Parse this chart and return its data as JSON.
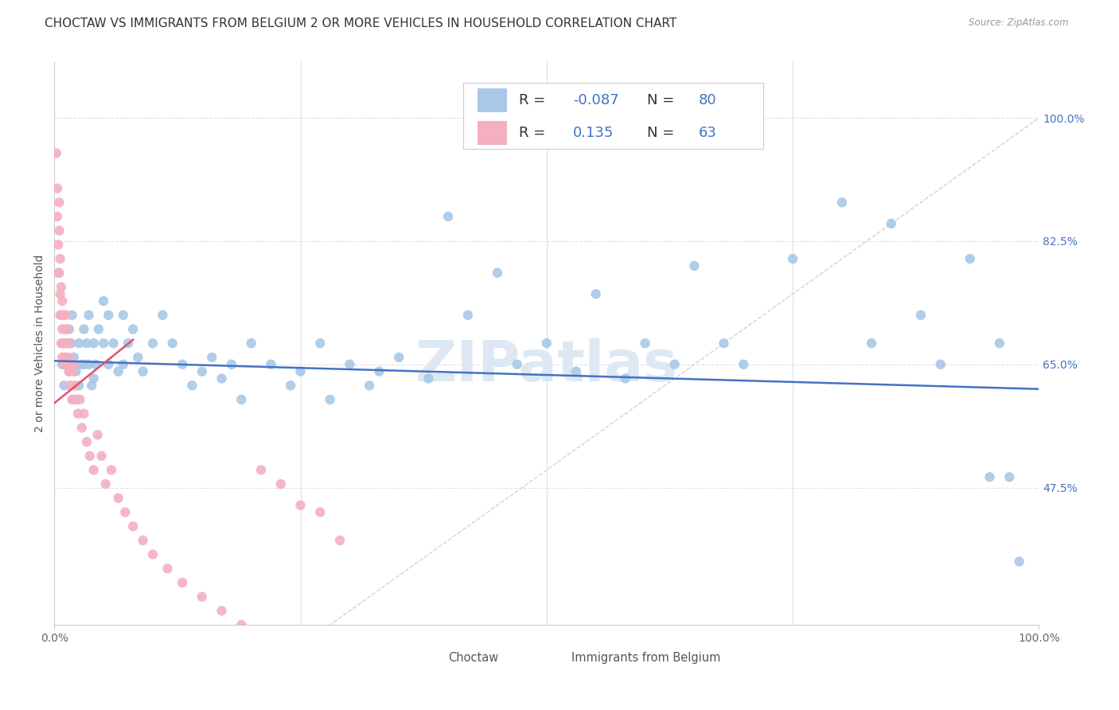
{
  "title": "CHOCTAW VS IMMIGRANTS FROM BELGIUM 2 OR MORE VEHICLES IN HOUSEHOLD CORRELATION CHART",
  "source": "Source: ZipAtlas.com",
  "ylabel": "2 or more Vehicles in Household",
  "choctaw_color": "#a8c8e8",
  "belgium_color": "#f4b0c0",
  "trend_choctaw_color": "#4472c4",
  "trend_belgium_color": "#e05070",
  "diagonal_color": "#c8c8c8",
  "watermark_color": "#dde8f4",
  "legend_r_choctaw": "-0.087",
  "legend_n_choctaw": "80",
  "legend_r_belgium": "0.135",
  "legend_n_belgium": "63",
  "grid_color": "#e0e0e8",
  "grid_style": "--",
  "bg_color": "#ffffff",
  "title_fontsize": 11,
  "label_fontsize": 10,
  "tick_fontsize": 10,
  "legend_fontsize": 13,
  "right_tick_color": "#4472c4",
  "ytick_positions": [
    0.475,
    0.65,
    0.825,
    1.0
  ],
  "ytick_labels": [
    "47.5%",
    "65.0%",
    "82.5%",
    "100.0%"
  ],
  "xtick_positions": [
    0.0,
    1.0
  ],
  "xtick_labels": [
    "0.0%",
    "100.0%"
  ],
  "ylim": [
    0.28,
    1.08
  ],
  "xlim": [
    0.0,
    1.0
  ],
  "choctaw_x": [
    0.008,
    0.01,
    0.012,
    0.015,
    0.015,
    0.017,
    0.018,
    0.02,
    0.02,
    0.022,
    0.025,
    0.025,
    0.028,
    0.03,
    0.03,
    0.033,
    0.035,
    0.035,
    0.038,
    0.04,
    0.04,
    0.042,
    0.045,
    0.05,
    0.05,
    0.055,
    0.055,
    0.06,
    0.065,
    0.07,
    0.07,
    0.075,
    0.08,
    0.085,
    0.09,
    0.1,
    0.11,
    0.12,
    0.13,
    0.14,
    0.15,
    0.16,
    0.17,
    0.18,
    0.19,
    0.2,
    0.22,
    0.24,
    0.25,
    0.27,
    0.28,
    0.3,
    0.32,
    0.33,
    0.35,
    0.38,
    0.4,
    0.42,
    0.45,
    0.47,
    0.5,
    0.53,
    0.55,
    0.58,
    0.6,
    0.63,
    0.65,
    0.68,
    0.7,
    0.75,
    0.8,
    0.83,
    0.85,
    0.88,
    0.9,
    0.93,
    0.95,
    0.96,
    0.97,
    0.98
  ],
  "choctaw_y": [
    0.65,
    0.62,
    0.68,
    0.7,
    0.64,
    0.68,
    0.72,
    0.66,
    0.6,
    0.64,
    0.68,
    0.62,
    0.65,
    0.7,
    0.65,
    0.68,
    0.72,
    0.65,
    0.62,
    0.68,
    0.63,
    0.65,
    0.7,
    0.74,
    0.68,
    0.72,
    0.65,
    0.68,
    0.64,
    0.72,
    0.65,
    0.68,
    0.7,
    0.66,
    0.64,
    0.68,
    0.72,
    0.68,
    0.65,
    0.62,
    0.64,
    0.66,
    0.63,
    0.65,
    0.6,
    0.68,
    0.65,
    0.62,
    0.64,
    0.68,
    0.6,
    0.65,
    0.62,
    0.64,
    0.66,
    0.63,
    0.86,
    0.72,
    0.78,
    0.65,
    0.68,
    0.64,
    0.75,
    0.63,
    0.68,
    0.65,
    0.79,
    0.68,
    0.65,
    0.8,
    0.88,
    0.68,
    0.85,
    0.72,
    0.65,
    0.8,
    0.49,
    0.68,
    0.49,
    0.37
  ],
  "belgium_x": [
    0.002,
    0.003,
    0.003,
    0.004,
    0.004,
    0.005,
    0.005,
    0.005,
    0.006,
    0.006,
    0.006,
    0.007,
    0.007,
    0.007,
    0.008,
    0.008,
    0.008,
    0.009,
    0.009,
    0.01,
    0.01,
    0.011,
    0.011,
    0.012,
    0.012,
    0.013,
    0.013,
    0.014,
    0.015,
    0.015,
    0.016,
    0.017,
    0.018,
    0.019,
    0.02,
    0.021,
    0.022,
    0.024,
    0.026,
    0.028,
    0.03,
    0.033,
    0.036,
    0.04,
    0.044,
    0.048,
    0.052,
    0.058,
    0.065,
    0.072,
    0.08,
    0.09,
    0.1,
    0.115,
    0.13,
    0.15,
    0.17,
    0.19,
    0.21,
    0.23,
    0.25,
    0.27,
    0.29
  ],
  "belgium_y": [
    0.95,
    0.9,
    0.86,
    0.82,
    0.78,
    0.88,
    0.84,
    0.78,
    0.8,
    0.75,
    0.72,
    0.76,
    0.72,
    0.68,
    0.74,
    0.7,
    0.66,
    0.72,
    0.68,
    0.68,
    0.65,
    0.7,
    0.66,
    0.72,
    0.68,
    0.7,
    0.65,
    0.66,
    0.68,
    0.64,
    0.62,
    0.65,
    0.6,
    0.64,
    0.65,
    0.62,
    0.6,
    0.58,
    0.6,
    0.56,
    0.58,
    0.54,
    0.52,
    0.5,
    0.55,
    0.52,
    0.48,
    0.5,
    0.46,
    0.44,
    0.42,
    0.4,
    0.38,
    0.36,
    0.34,
    0.32,
    0.3,
    0.28,
    0.5,
    0.48,
    0.45,
    0.44,
    0.4
  ]
}
